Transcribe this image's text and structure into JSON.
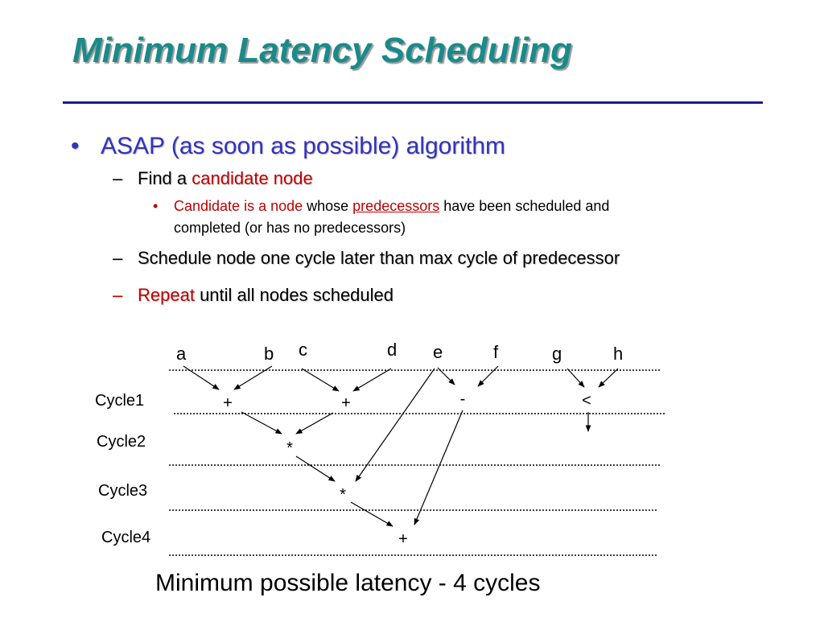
{
  "slide": {
    "title": "Minimum Latency Scheduling",
    "bullet1": {
      "mark": "•",
      "text": "ASAP (as soon as possible) algorithm"
    },
    "sub1": {
      "mark": "–",
      "prefix": "Find a ",
      "highlight": "candidate node"
    },
    "sub1_detail": {
      "mark": "•",
      "red_part": "Candidate is a node",
      "mid": " whose ",
      "underlined": "predecessors",
      "line1_rest": " have been scheduled and",
      "line2": "completed (or has no predecessors)"
    },
    "sub2": {
      "mark": "–",
      "text": "Schedule node one cycle later than max cycle of predecessor"
    },
    "sub3": {
      "mark": "–",
      "highlight": "Repeat",
      "rest": " until all nodes scheduled"
    },
    "caption": "Minimum possible latency - 4 cycles"
  },
  "diagram": {
    "inputs": [
      "a",
      "b",
      "c",
      "d",
      "e",
      "f",
      "g",
      "h"
    ],
    "cycle_labels": [
      "Cycle1",
      "Cycle2",
      "Cycle3",
      "Cycle4"
    ],
    "operations": [
      {
        "id": "add1",
        "symbol": "+",
        "cycle": 1
      },
      {
        "id": "add2",
        "symbol": "+",
        "cycle": 1
      },
      {
        "id": "sub1",
        "symbol": "-",
        "cycle": 1
      },
      {
        "id": "lt1",
        "symbol": "<",
        "cycle": 1
      },
      {
        "id": "mul1",
        "symbol": "*",
        "cycle": 2
      },
      {
        "id": "mul2",
        "symbol": "*",
        "cycle": 3
      },
      {
        "id": "add3",
        "symbol": "+",
        "cycle": 4
      }
    ],
    "edges": [
      [
        "a",
        "add1"
      ],
      [
        "b",
        "add1"
      ],
      [
        "c",
        "add2"
      ],
      [
        "d",
        "add2"
      ],
      [
        "e",
        "sub1"
      ],
      [
        "f",
        "sub1"
      ],
      [
        "g",
        "lt1"
      ],
      [
        "h",
        "lt1"
      ],
      [
        "add1",
        "mul1"
      ],
      [
        "add2",
        "mul1"
      ],
      [
        "e",
        "mul2"
      ],
      [
        "mul1",
        "mul2"
      ],
      [
        "mul2",
        "add3"
      ],
      [
        "sub1",
        "add3"
      ],
      [
        "lt1",
        "out"
      ]
    ]
  }
}
